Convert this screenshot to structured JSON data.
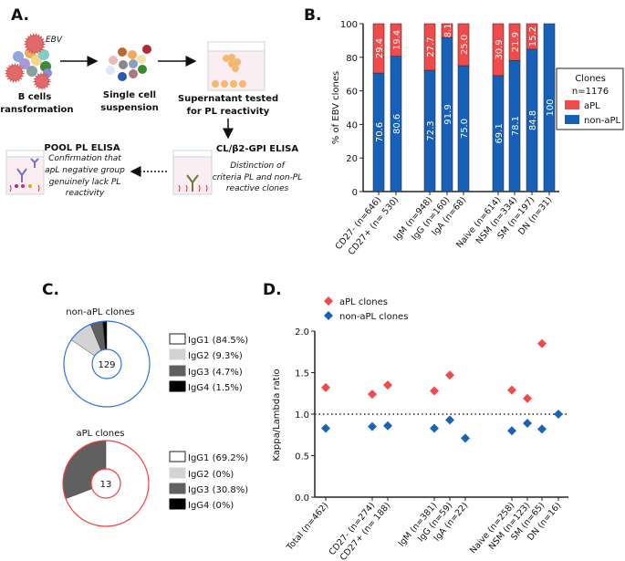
{
  "panels": {
    "a": "A.",
    "b": "B.",
    "c": "C.",
    "d": "D."
  },
  "schematic": {
    "ebv": "EBV",
    "step1": [
      "B cells",
      "transformation"
    ],
    "step2": [
      "Single cell",
      "suspension"
    ],
    "step3": [
      "Supernatant tested",
      "for PL reactivity"
    ],
    "step4_title": "CL/β2-GPI ELISA",
    "step4_desc": [
      "Distinction of",
      "criteria PL and non-PL",
      "reactive clones"
    ],
    "step5_title": "POOL PL ELISA",
    "step5_desc": [
      "Confirmation that",
      "apL negative group",
      "genuinely lack PL",
      "reactivity"
    ]
  },
  "colors": {
    "aPL": "#f24a4a",
    "non_aPL": "#1560b8",
    "IgG1": "#ffffff",
    "IgG2": "#d3d3d3",
    "IgG3": "#606060",
    "IgG4": "#000000",
    "nonaPL_ring": "#2d73e0",
    "aPL_ring": "#f04040",
    "d_aPL": "#f24a4a",
    "d_non_aPL": "#1a64b8"
  },
  "chart_data": [
    {
      "type": "bar",
      "stacked": true,
      "ylabel": "% of EBV clones",
      "ylim": [
        0,
        100
      ],
      "yticks": [
        0,
        20,
        40,
        60,
        80,
        100
      ],
      "categories": [
        "CD27- (n=646)",
        "CD27+ (n= 530)",
        "IgM (n=948)",
        "IgG (n=160)",
        "IgA (n=68)",
        "Naive (n=614)",
        "NSM (n=334)",
        "SM (n=197)",
        "DN (n=31)"
      ],
      "series": [
        {
          "name": "non-aPL",
          "values": [
            70.6,
            80.6,
            72.3,
            91.9,
            75.0,
            69.1,
            78.1,
            84.8,
            100
          ],
          "labels": [
            "70.6",
            "80.6",
            "72.3",
            "91.9",
            "75.0",
            "69.1",
            "78.1",
            "84.8",
            "100"
          ]
        },
        {
          "name": "aPL",
          "values": [
            29.4,
            19.4,
            27.7,
            8.1,
            25.0,
            30.9,
            21.9,
            15.2,
            0
          ],
          "labels": [
            "29.4",
            "19.4",
            "27.7",
            "8.1",
            "25.0",
            "30.9",
            "21.9",
            "15.2",
            ""
          ]
        }
      ],
      "legend": {
        "title": "Clones",
        "subtitle": "n=1176",
        "items": [
          "aPL",
          "non-aPL"
        ],
        "position": "right"
      }
    },
    {
      "type": "pie",
      "title": "non-aPL clones",
      "center_label": "129",
      "slices": [
        {
          "name": "IgG1",
          "value": 84.5,
          "legend": "IgG1 (84.5%)"
        },
        {
          "name": "IgG2",
          "value": 9.3,
          "legend": "IgG2 (9.3%)"
        },
        {
          "name": "IgG3",
          "value": 4.7,
          "legend": "IgG3 (4.7%)"
        },
        {
          "name": "IgG4",
          "value": 1.5,
          "legend": "IgG4 (1.5%)"
        }
      ]
    },
    {
      "type": "pie",
      "title": "aPL clones",
      "center_label": "13",
      "slices": [
        {
          "name": "IgG1",
          "value": 69.2,
          "legend": "IgG1 (69.2%)"
        },
        {
          "name": "IgG2",
          "value": 0,
          "legend": "IgG2 (0%)"
        },
        {
          "name": "IgG3",
          "value": 30.8,
          "legend": "IgG3 (30.8%)"
        },
        {
          "name": "IgG4",
          "value": 0,
          "legend": "IgG4 (0%)"
        }
      ]
    },
    {
      "type": "scatter",
      "ylabel": "Kappa/Lambda ratio",
      "ylim": [
        0,
        2.0
      ],
      "yticks": [
        "0.0",
        "0.5",
        "1.0",
        "1.5",
        "2.0"
      ],
      "reference_line": 1.0,
      "categories": [
        "Total (n=462)",
        "CD27- (n=274)",
        "CD27+ (n= 188)",
        "IgM (n=381)",
        "IgG (n=59)",
        "IgA (n=22)",
        "Naive (n=258)",
        "NSM (n=123)",
        "SM (n=65)",
        "DN (n=16)"
      ],
      "series": [
        {
          "name": "aPL clones",
          "values": [
            1.32,
            1.24,
            1.35,
            1.28,
            1.47,
            null,
            1.29,
            1.19,
            1.85,
            null
          ]
        },
        {
          "name": "non-aPL clones",
          "values": [
            0.83,
            0.85,
            0.86,
            0.83,
            0.93,
            0.71,
            0.8,
            0.89,
            0.82,
            1.0
          ]
        }
      ],
      "legend": {
        "position": "top-left"
      }
    }
  ]
}
